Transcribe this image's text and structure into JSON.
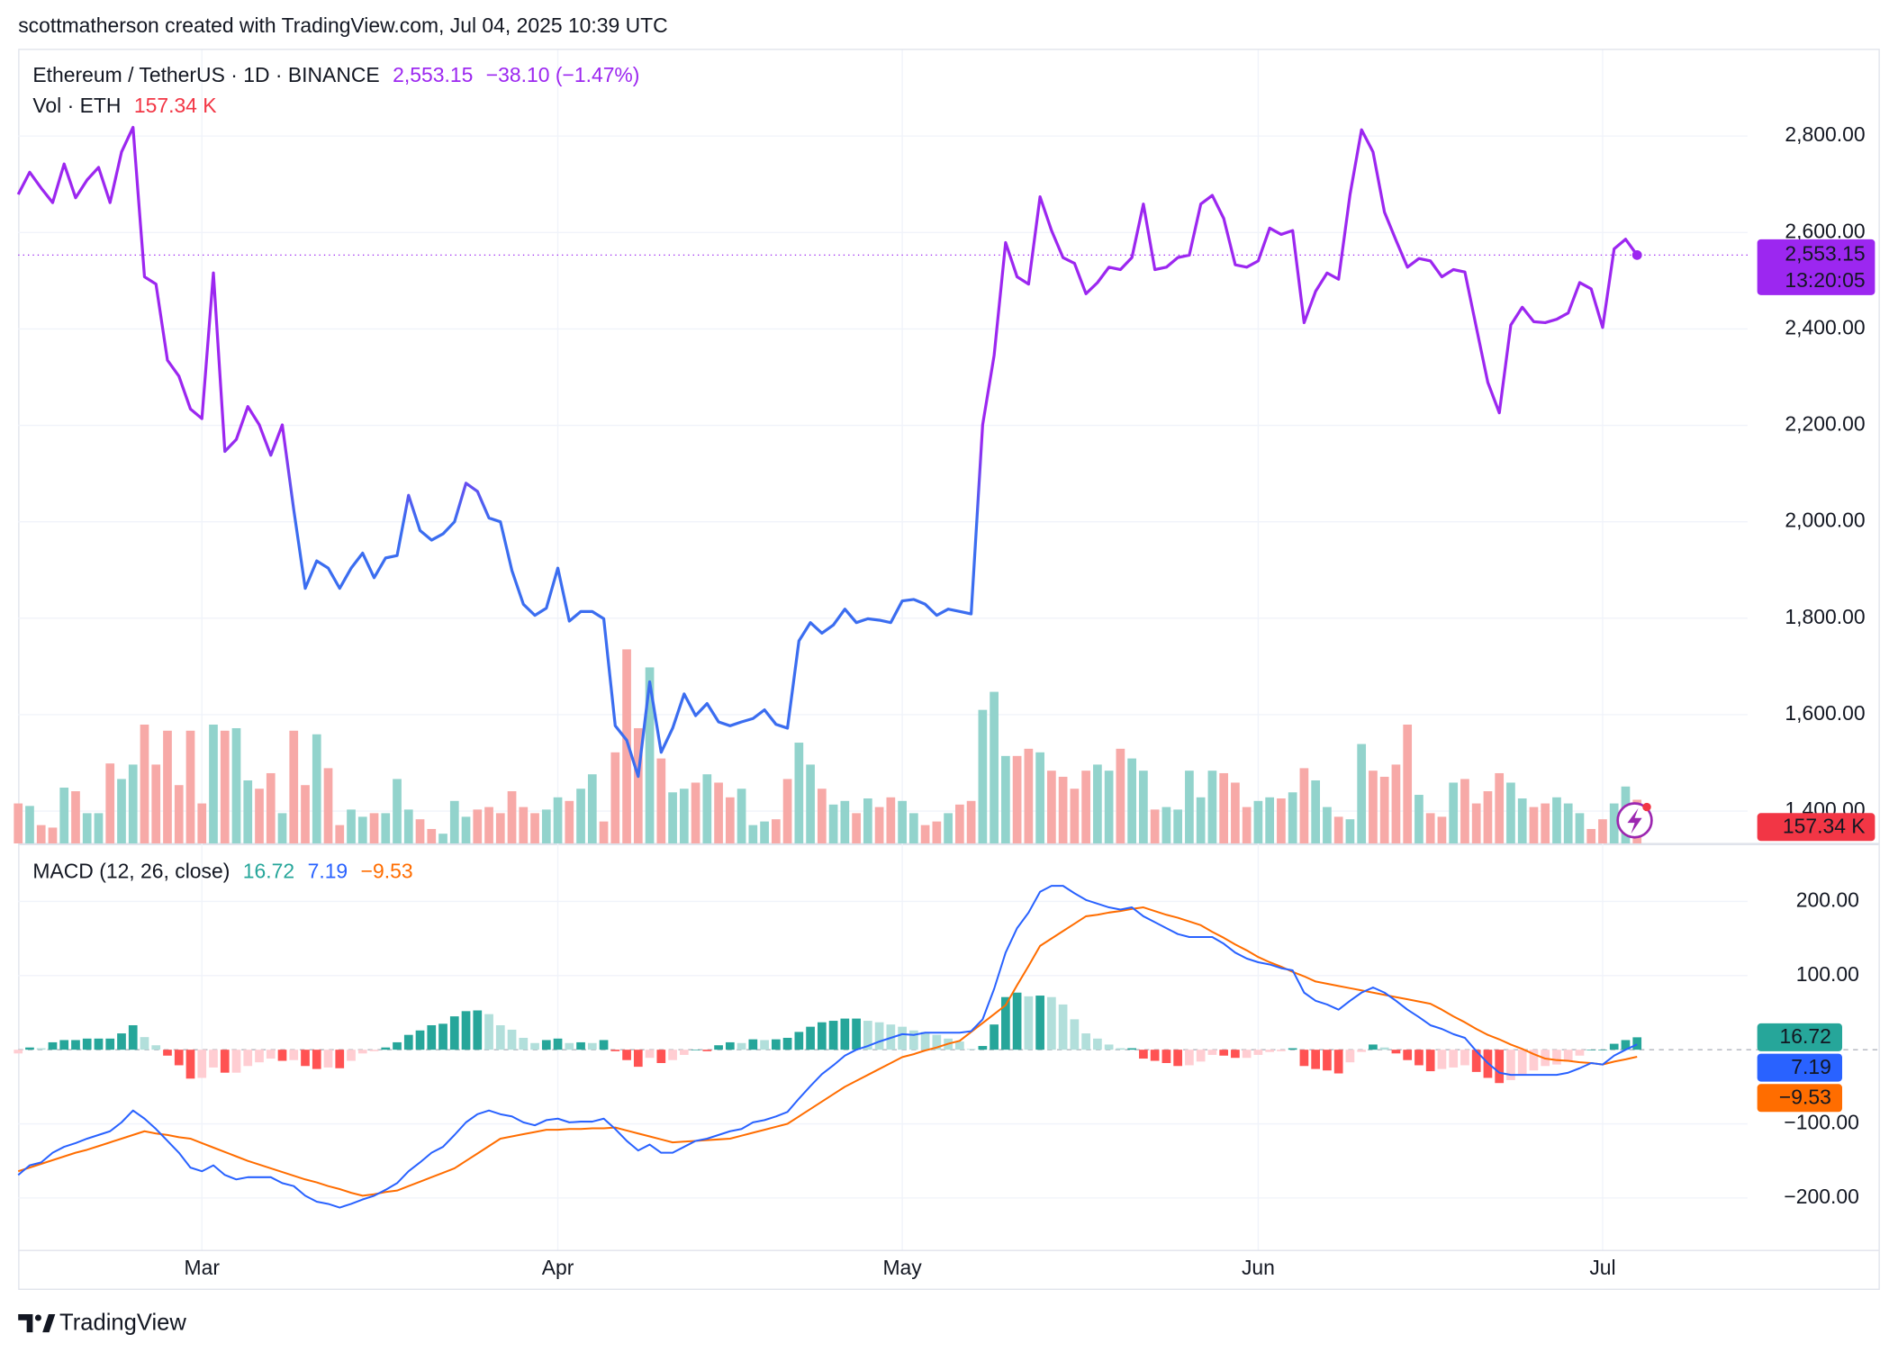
{
  "header": "scottmatherson created with TradingView.com, Jul 04, 2025 10:39 UTC",
  "footer": "TradingView",
  "chart_data": [
    {
      "type": "line",
      "title": "Ethereum / TetherUS · 1D · BINANCE",
      "last_label": "2,553.15",
      "change": "−38.10 (−1.47%)",
      "countdown": "13:20:05",
      "colors": [
        "#9c27f0",
        "#3b6df0"
      ],
      "tag_color": "#9c27f0",
      "categories": [
        null,
        null,
        null,
        null,
        null,
        null,
        null,
        null,
        null,
        null,
        null,
        null,
        null,
        null,
        null,
        null,
        "Mar",
        null,
        null,
        null,
        null,
        null,
        null,
        null,
        null,
        null,
        null,
        null,
        null,
        null,
        null,
        null,
        null,
        null,
        null,
        null,
        null,
        null,
        null,
        null,
        null,
        null,
        null,
        null,
        null,
        null,
        null,
        "Apr",
        null,
        null,
        null,
        null,
        null,
        null,
        null,
        null,
        null,
        null,
        null,
        null,
        null,
        null,
        null,
        null,
        null,
        null,
        null,
        null,
        null,
        null,
        null,
        null,
        null,
        null,
        null,
        null,
        null,
        "May",
        null,
        null,
        null,
        null,
        null,
        null,
        null,
        null,
        null,
        null,
        null,
        null,
        null,
        null,
        null,
        null,
        null,
        null,
        null,
        null,
        null,
        null,
        null,
        null,
        null,
        null,
        null,
        null,
        null,
        null,
        "Jun",
        null,
        null,
        null,
        null,
        null,
        null,
        null,
        null,
        null,
        null,
        null,
        null,
        null,
        null,
        null,
        null,
        null,
        null,
        null,
        null,
        null,
        null,
        null,
        null,
        null,
        null,
        null,
        null,
        null,
        "Jul",
        null,
        null,
        null
      ],
      "values": [
        2679,
        2725,
        2692,
        2662,
        2742,
        2672,
        2709,
        2735,
        2662,
        2767,
        2818,
        2508,
        2493,
        2335,
        2302,
        2234,
        2214,
        2516,
        2146,
        2171,
        2239,
        2201,
        2138,
        2201,
        2025,
        1862,
        1919,
        1904,
        1862,
        1904,
        1935,
        1884,
        1925,
        1930,
        2055,
        1982,
        1962,
        1975,
        2000,
        2080,
        2063,
        2008,
        2000,
        1899,
        1829,
        1806,
        1821,
        1904,
        1794,
        1814,
        1814,
        1799,
        1577,
        1547,
        1472,
        1668,
        1522,
        1572,
        1643,
        1598,
        1623,
        1585,
        1577,
        1585,
        1592,
        1610,
        1580,
        1572,
        1753,
        1791,
        1769,
        1786,
        1819,
        1791,
        1799,
        1796,
        1791,
        1836,
        1839,
        1829,
        1806,
        1819,
        1814,
        1809,
        2201,
        2345,
        2579,
        2508,
        2493,
        2674,
        2604,
        2548,
        2536,
        2473,
        2496,
        2528,
        2523,
        2548,
        2659,
        2523,
        2528,
        2548,
        2553,
        2659,
        2677,
        2629,
        2533,
        2528,
        2541,
        2609,
        2596,
        2604,
        2413,
        2478,
        2516,
        2503,
        2679,
        2813,
        2767,
        2642,
        2584,
        2528,
        2546,
        2541,
        2508,
        2523,
        2518,
        2403,
        2289,
        2226,
        2408,
        2445,
        2415,
        2413,
        2420,
        2433,
        2496,
        2483,
        2403,
        2566,
        2586,
        2553.15
      ],
      "ylim": [
        1333,
        2981
      ],
      "yticks": [
        {
          "value": 1400,
          "label": "1,400.00"
        },
        {
          "value": 1600,
          "label": "1,600.00"
        },
        {
          "value": 1800,
          "label": "1,800.00"
        },
        {
          "value": 2000,
          "label": "2,000.00"
        },
        {
          "value": 2200,
          "label": "2,200.00"
        },
        {
          "value": 2400,
          "label": "2,400.00"
        },
        {
          "value": 2600,
          "label": "2,600.00"
        },
        {
          "value": 2800,
          "label": "2,800.00"
        }
      ],
      "grid": true
    },
    {
      "type": "bar",
      "title": "Vol · ETH",
      "value_label": "157.34 K",
      "up_color": "#92d3cc",
      "down_color": "#f7a9a7",
      "tag_color": "#f23645",
      "values": [
        144,
        135,
        66,
        57,
        201,
        188,
        109,
        109,
        288,
        232,
        284,
        428,
        284,
        406,
        210,
        406,
        144,
        428,
        406,
        415,
        227,
        197,
        253,
        109,
        406,
        210,
        393,
        271,
        66,
        122,
        96,
        109,
        109,
        232,
        122,
        87,
        52,
        35,
        153,
        96,
        122,
        131,
        109,
        188,
        131,
        109,
        122,
        166,
        153,
        197,
        249,
        79,
        328,
        699,
        415,
        634,
        306,
        184,
        197,
        219,
        249,
        219,
        166,
        197,
        66,
        79,
        87,
        232,
        363,
        284,
        197,
        140,
        153,
        109,
        162,
        131,
        166,
        153,
        109,
        66,
        79,
        109,
        140,
        153,
        481,
        546,
        315,
        315,
        341,
        328,
        262,
        240,
        197,
        262,
        284,
        262,
        341,
        306,
        262,
        122,
        131,
        122,
        262,
        166,
        262,
        253,
        219,
        131,
        153,
        166,
        162,
        184,
        271,
        227,
        131,
        96,
        87,
        358,
        262,
        240,
        284,
        428,
        175,
        109,
        96,
        219,
        232,
        144,
        188,
        253,
        219,
        162,
        131,
        144,
        166,
        144,
        109,
        52,
        87,
        144,
        205,
        157.34
      ],
      "ylim": [
        0,
        2600
      ]
    },
    {
      "type": "macd",
      "title": "MACD (12, 26, close)",
      "histogram": {
        "colors": [
          "#26a69a",
          "#b2dfdb",
          "#ff5252",
          "#ffcdd2"
        ],
        "values": [
          -5,
          3,
          2,
          10,
          13,
          13,
          15,
          15,
          15,
          22,
          33,
          17,
          6,
          -8,
          -21,
          -39,
          -38,
          -24,
          -31,
          -31,
          -22,
          -17,
          -12,
          -15,
          -14,
          -22,
          -26,
          -24,
          -25,
          -15,
          -5,
          -2,
          3,
          10,
          20,
          26,
          33,
          35,
          45,
          52,
          53,
          48,
          33,
          27,
          16,
          9,
          13,
          15,
          9,
          10,
          9,
          13,
          -2,
          -14,
          -23,
          -11,
          -18,
          -14,
          -7,
          0,
          -2,
          6,
          10,
          9,
          14,
          13,
          14,
          16,
          24,
          31,
          37,
          39,
          42,
          42,
          39,
          37,
          34,
          31,
          26,
          24,
          20,
          15,
          11,
          1,
          5,
          34,
          71,
          77,
          72,
          73,
          71,
          61,
          41,
          22,
          15,
          7,
          2,
          2,
          -12,
          -15,
          -18,
          -22,
          -21,
          -16,
          -7,
          -8,
          -11,
          -11,
          -7,
          -3,
          -2,
          2,
          -22,
          -26,
          -28,
          -32,
          -17,
          -3,
          7,
          3,
          -5,
          -14,
          -21,
          -29,
          -26,
          -24,
          -21,
          -30,
          -38,
          -45,
          -41,
          -35,
          -28,
          -22,
          -20,
          -16,
          -8,
          0,
          0,
          8,
          13,
          16.72
        ]
      },
      "macd": {
        "color": "#2962ff",
        "values": [
          -169,
          -156,
          -152,
          -139,
          -131,
          -126,
          -120,
          -115,
          -110,
          -98,
          -82,
          -93,
          -107,
          -123,
          -139,
          -159,
          -164,
          -156,
          -169,
          -175,
          -172,
          -172,
          -172,
          -180,
          -184,
          -197,
          -205,
          -208,
          -213,
          -208,
          -202,
          -197,
          -189,
          -180,
          -164,
          -152,
          -139,
          -131,
          -115,
          -98,
          -87,
          -82,
          -87,
          -90,
          -98,
          -102,
          -95,
          -93,
          -98,
          -97,
          -97,
          -93,
          -107,
          -123,
          -136,
          -128,
          -139,
          -139,
          -131,
          -123,
          -120,
          -115,
          -110,
          -107,
          -98,
          -95,
          -90,
          -84,
          -66,
          -49,
          -33,
          -21,
          -8,
          0,
          5,
          11,
          16,
          21,
          20,
          23,
          23,
          23,
          23,
          25,
          41,
          82,
          131,
          164,
          185,
          213,
          221,
          221,
          211,
          202,
          197,
          192,
          189,
          192,
          180,
          172,
          164,
          156,
          152,
          152,
          152,
          143,
          131,
          123,
          118,
          115,
          110,
          107,
          77,
          66,
          61,
          54,
          66,
          77,
          84,
          77,
          66,
          54,
          44,
          33,
          28,
          21,
          16,
          -2,
          -18,
          -31,
          -34,
          -34,
          -34,
          -34,
          -34,
          -31,
          -25,
          -18,
          -20,
          -8,
          0,
          7.19
        ]
      },
      "signal": {
        "color": "#ff6d00",
        "last_label": "−9.53",
        "values": [
          -164,
          -159,
          -154,
          -149,
          -144,
          -139,
          -135,
          -130,
          -125,
          -120,
          -115,
          -110,
          -113,
          -115,
          -118,
          -120,
          -126,
          -132,
          -138,
          -144,
          -150,
          -155,
          -160,
          -165,
          -170,
          -175,
          -179,
          -184,
          -188,
          -193,
          -197,
          -195,
          -192,
          -190,
          -184,
          -178,
          -172,
          -166,
          -160,
          -150,
          -140,
          -130,
          -120,
          -117,
          -114,
          -111,
          -108,
          -108,
          -107,
          -107,
          -106,
          -106,
          -105,
          -109,
          -113,
          -117,
          -121,
          -125,
          -124,
          -123,
          -122,
          -121,
          -120,
          -116,
          -112,
          -108,
          -104,
          -100,
          -90,
          -80,
          -70,
          -60,
          -50,
          -42,
          -34,
          -26,
          -18,
          -10,
          -6,
          -1,
          3,
          8,
          12,
          24,
          36,
          48,
          60,
          87,
          113,
          140,
          150,
          160,
          170,
          180,
          182,
          185,
          187,
          190,
          192,
          187,
          182,
          178,
          173,
          168,
          159,
          151,
          142,
          134,
          125,
          118,
          112,
          105,
          99,
          92,
          89,
          86,
          83,
          80,
          77,
          74,
          71,
          68,
          65,
          62,
          54,
          45,
          37,
          28,
          20,
          14,
          7,
          1,
          -6,
          -12,
          -14,
          -15,
          -17,
          -18,
          -20,
          -16,
          -13,
          -9.53
        ]
      },
      "ylim": [
        -270,
        275
      ],
      "yticks": [
        {
          "value": -200,
          "label": "−200.00"
        },
        {
          "value": -100,
          "label": "−100.00"
        },
        {
          "value": 100,
          "label": "100.00"
        },
        {
          "value": 200,
          "label": "200.00"
        }
      ],
      "grid": true
    }
  ]
}
